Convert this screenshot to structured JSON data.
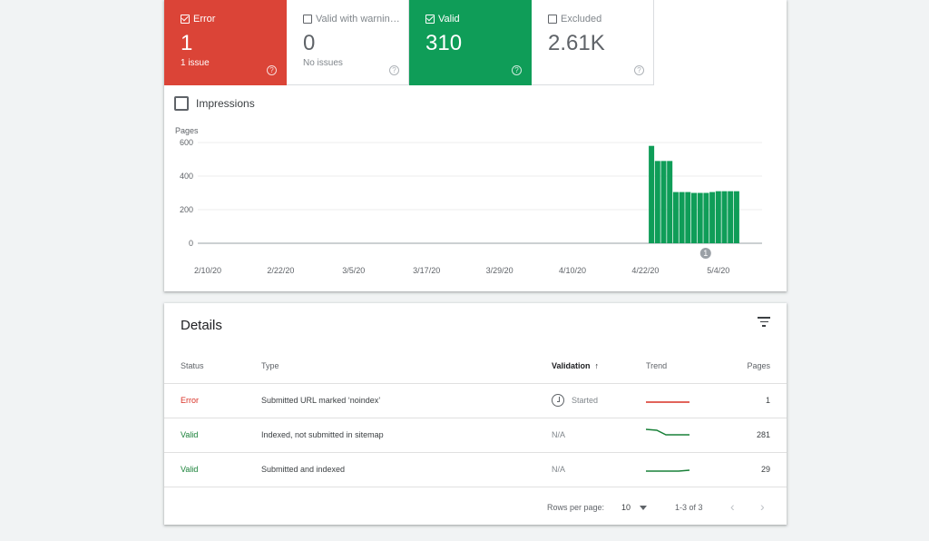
{
  "tiles": [
    {
      "label": "Error",
      "value": "1",
      "sub": "1 issue",
      "checked": true,
      "color": "#db4437"
    },
    {
      "label": "Valid with warnin…",
      "value": "0",
      "sub": "No issues",
      "checked": false,
      "color": "#ffffff"
    },
    {
      "label": "Valid",
      "value": "310",
      "sub": "",
      "checked": true,
      "color": "#0f9d58"
    },
    {
      "label": "Excluded",
      "value": "2.61K",
      "sub": "",
      "checked": false,
      "color": "#ffffff"
    }
  ],
  "help_glyph": "?",
  "impressions": {
    "label": "Impressions",
    "checked": false
  },
  "chart_data": {
    "type": "bar",
    "ylabel": "Pages",
    "ylim": [
      0,
      600
    ],
    "yticks": [
      0,
      200,
      400,
      600
    ],
    "x_tick_labels": [
      "2/10/20",
      "2/22/20",
      "3/5/20",
      "3/17/20",
      "3/29/20",
      "4/10/20",
      "4/22/20",
      "5/4/20"
    ],
    "dates": [
      "4/23/20",
      "4/24/20",
      "4/25/20",
      "4/26/20",
      "4/27/20",
      "4/28/20",
      "4/29/20",
      "4/30/20",
      "5/1/20",
      "5/2/20",
      "5/3/20",
      "5/4/20",
      "5/5/20",
      "5/6/20",
      "5/7/20"
    ],
    "values": [
      580,
      490,
      490,
      490,
      305,
      305,
      305,
      300,
      300,
      300,
      305,
      310,
      310,
      310,
      310
    ],
    "annotation": {
      "label": "1",
      "date": "5/4/20"
    },
    "color": "#0f9d58",
    "grid": true
  },
  "details": {
    "title": "Details",
    "columns": {
      "status": "Status",
      "type": "Type",
      "validation": "Validation",
      "trend": "Trend",
      "pages": "Pages"
    },
    "rows": [
      {
        "status": "Error",
        "type": "Submitted URL marked ‘noindex’",
        "validation": "Started",
        "pages": "1"
      },
      {
        "status": "Valid",
        "type": "Indexed, not submitted in sitemap",
        "validation": "N/A",
        "pages": "281"
      },
      {
        "status": "Valid",
        "type": "Submitted and indexed",
        "validation": "N/A",
        "pages": "29"
      }
    ],
    "pager": {
      "rows_label": "Rows per page:",
      "rows_value": "10",
      "range": "1-3 of 3"
    }
  }
}
